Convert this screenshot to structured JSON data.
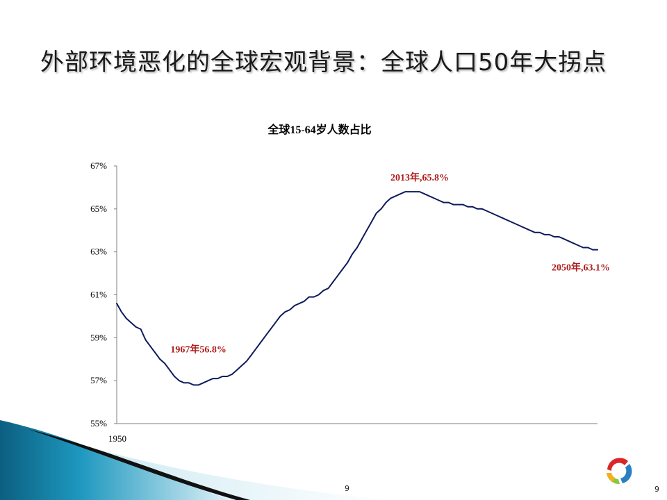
{
  "slide": {
    "title": "外部环境恶化的全球宏观背景：全球人口50年大拐点",
    "page_number_center": "9",
    "page_number_right": "9"
  },
  "colors": {
    "line": "#0d1a5c",
    "annotation": "#b01c1c",
    "axis": "#7f7f7f",
    "decor_blue": "#1b8fb3"
  },
  "chart_data": {
    "type": "line",
    "title": "全球15-64岁人数占比",
    "xlabel": "",
    "ylabel": "",
    "xlim": [
      1950,
      2050
    ],
    "ylim": [
      55,
      67
    ],
    "y_ticks": [
      55,
      57,
      59,
      61,
      63,
      65,
      67
    ],
    "y_tick_labels": [
      "55%",
      "57%",
      "59%",
      "61%",
      "63%",
      "65%",
      "67%"
    ],
    "x_tick_labels": [
      "1950"
    ],
    "grid": false,
    "legend": "none",
    "series": [
      {
        "x": [
          1950,
          1951,
          1952,
          1953,
          1954,
          1955,
          1956,
          1957,
          1958,
          1959,
          1960,
          1961,
          1962,
          1963,
          1964,
          1965,
          1966,
          1967,
          1968,
          1969,
          1970,
          1971,
          1972,
          1973,
          1974,
          1975,
          1976,
          1977,
          1978,
          1979,
          1980,
          1981,
          1982,
          1983,
          1984,
          1985,
          1986,
          1987,
          1988,
          1989,
          1990,
          1991,
          1992,
          1993,
          1994,
          1995,
          1996,
          1997,
          1998,
          1999,
          2000,
          2001,
          2002,
          2003,
          2004,
          2005,
          2006,
          2007,
          2008,
          2009,
          2010,
          2011,
          2012,
          2013,
          2014,
          2015,
          2016,
          2017,
          2018,
          2019,
          2020,
          2021,
          2022,
          2023,
          2024,
          2025,
          2026,
          2027,
          2028,
          2029,
          2030,
          2031,
          2032,
          2033,
          2034,
          2035,
          2036,
          2037,
          2038,
          2039,
          2040,
          2041,
          2042,
          2043,
          2044,
          2045,
          2046,
          2047,
          2048,
          2049,
          2050
        ],
        "values": [
          60.6,
          60.2,
          59.9,
          59.7,
          59.5,
          59.4,
          58.9,
          58.6,
          58.3,
          58.0,
          57.8,
          57.5,
          57.2,
          57.0,
          56.9,
          56.9,
          56.8,
          56.8,
          56.9,
          57.0,
          57.1,
          57.1,
          57.2,
          57.2,
          57.3,
          57.5,
          57.7,
          57.9,
          58.2,
          58.5,
          58.8,
          59.1,
          59.4,
          59.7,
          60.0,
          60.2,
          60.3,
          60.5,
          60.6,
          60.7,
          60.9,
          60.9,
          61.0,
          61.2,
          61.3,
          61.6,
          61.9,
          62.2,
          62.5,
          62.9,
          63.2,
          63.6,
          64.0,
          64.4,
          64.8,
          65.0,
          65.3,
          65.5,
          65.6,
          65.7,
          65.8,
          65.8,
          65.8,
          65.8,
          65.7,
          65.6,
          65.5,
          65.4,
          65.3,
          65.3,
          65.2,
          65.2,
          65.2,
          65.1,
          65.1,
          65.0,
          65.0,
          64.9,
          64.8,
          64.7,
          64.6,
          64.5,
          64.4,
          64.3,
          64.2,
          64.1,
          64.0,
          63.9,
          63.9,
          63.8,
          63.8,
          63.7,
          63.7,
          63.6,
          63.5,
          63.4,
          63.3,
          63.2,
          63.2,
          63.1,
          63.1
        ]
      }
    ],
    "annotations": [
      {
        "text": "1967年56.8%",
        "x": 1967,
        "y": 56.8
      },
      {
        "text": "2013年,65.8%",
        "x": 2013,
        "y": 65.8
      },
      {
        "text": "2050年,63.1%",
        "x": 2050,
        "y": 63.1
      }
    ]
  }
}
